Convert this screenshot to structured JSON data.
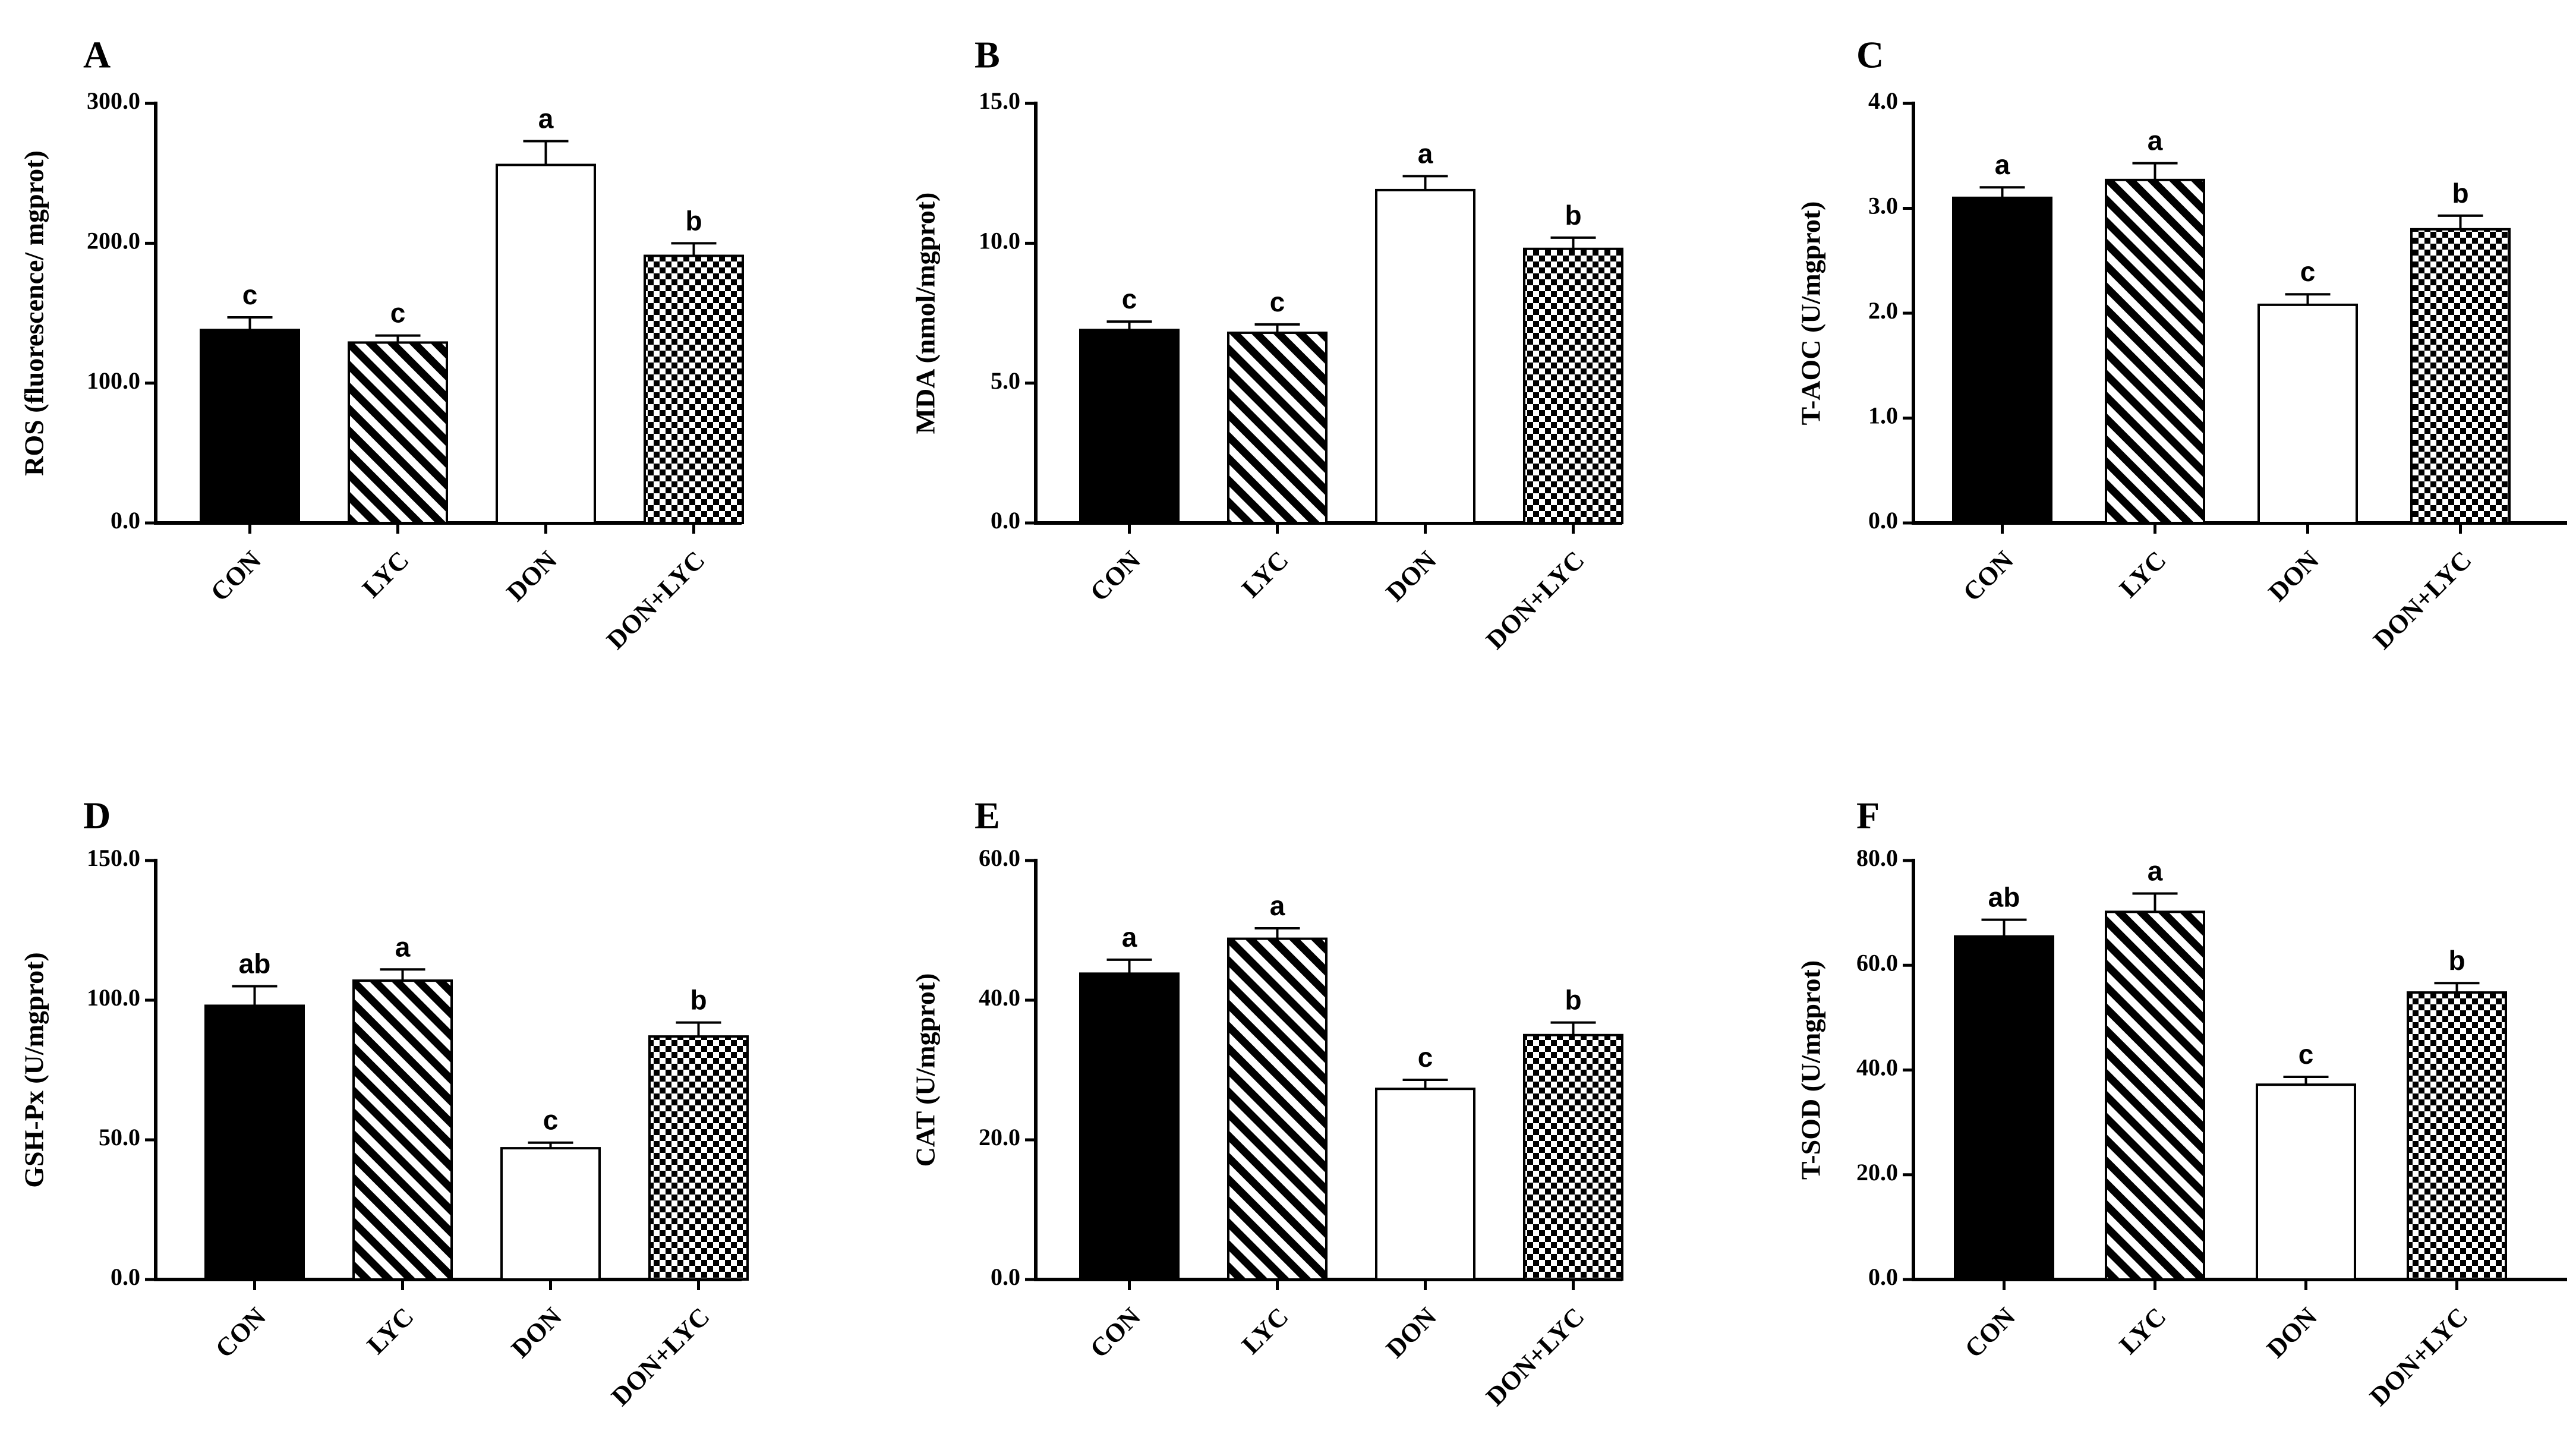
{
  "chart_data": [
    {
      "panel": "A",
      "type": "bar",
      "ylabel": "ROS (fluorescence/ mgprot)",
      "ylim": [
        0,
        300
      ],
      "ytick_labels": [
        "0.0",
        "100.0",
        "200.0",
        "300.0"
      ],
      "categories": [
        "CON",
        "LYC",
        "DON",
        "DON+LYC"
      ],
      "values": [
        138,
        129,
        256,
        191
      ],
      "errors": [
        9,
        5,
        17,
        9
      ],
      "significance": [
        "c",
        "c",
        "a",
        "b"
      ],
      "fills": [
        "solid",
        "stripes",
        "white",
        "checker"
      ]
    },
    {
      "panel": "B",
      "type": "bar",
      "ylabel": "MDA (nmol/mgprot)",
      "ylim": [
        0,
        15
      ],
      "ytick_labels": [
        "0.0",
        "5.0",
        "10.0",
        "15.0"
      ],
      "categories": [
        "CON",
        "LYC",
        "DON",
        "DON+LYC"
      ],
      "values": [
        6.9,
        6.8,
        11.9,
        9.8
      ],
      "errors": [
        0.3,
        0.3,
        0.5,
        0.4
      ],
      "significance": [
        "c",
        "c",
        "a",
        "b"
      ],
      "fills": [
        "solid",
        "stripes",
        "white",
        "checker"
      ]
    },
    {
      "panel": "C",
      "type": "bar",
      "ylabel": "T-AOC (U/mgprot)",
      "ylim": [
        0,
        4
      ],
      "ytick_labels": [
        "0.0",
        "1.0",
        "2.0",
        "3.0",
        "4.0"
      ],
      "categories": [
        "CON",
        "LYC",
        "DON",
        "DON+LYC"
      ],
      "values": [
        3.1,
        3.27,
        2.08,
        2.8
      ],
      "errors": [
        0.1,
        0.16,
        0.1,
        0.13
      ],
      "significance": [
        "a",
        "a",
        "c",
        "b"
      ],
      "fills": [
        "solid",
        "stripes",
        "white",
        "checker"
      ]
    },
    {
      "panel": "D",
      "type": "bar",
      "ylabel": "GSH-Px (U/mgprot)",
      "ylim": [
        0,
        150
      ],
      "ytick_labels": [
        "0.0",
        "50.0",
        "100.0",
        "150.0"
      ],
      "categories": [
        "CON",
        "LYC",
        "DON",
        "DON+LYC"
      ],
      "values": [
        98,
        107,
        47,
        87
      ],
      "errors": [
        7,
        4,
        2,
        5
      ],
      "significance": [
        "ab",
        "a",
        "c",
        "b"
      ],
      "fills": [
        "solid",
        "stripes",
        "white",
        "checker"
      ]
    },
    {
      "panel": "E",
      "type": "bar",
      "ylabel": "CAT (U/mgprot)",
      "ylim": [
        0,
        60
      ],
      "ytick_labels": [
        "0.0",
        "20.0",
        "40.0",
        "60.0"
      ],
      "categories": [
        "CON",
        "LYC",
        "DON",
        "DON+LYC"
      ],
      "values": [
        43.8,
        48.8,
        27.3,
        35
      ],
      "errors": [
        2,
        1.5,
        1.3,
        1.8
      ],
      "significance": [
        "a",
        "a",
        "c",
        "b"
      ],
      "fills": [
        "solid",
        "stripes",
        "white",
        "checker"
      ]
    },
    {
      "panel": "F",
      "type": "bar",
      "ylabel": "T-SOD (U/mgprot)",
      "ylim": [
        0,
        80
      ],
      "ytick_labels": [
        "0.0",
        "20.0",
        "40.0",
        "60.0",
        "80.0"
      ],
      "categories": [
        "CON",
        "LYC",
        "DON",
        "DON+LYC"
      ],
      "values": [
        65.5,
        70.2,
        37.2,
        54.8
      ],
      "errors": [
        3.2,
        3.5,
        1.5,
        1.8
      ],
      "significance": [
        "ab",
        "a",
        "c",
        "b"
      ],
      "fills": [
        "solid",
        "stripes",
        "white",
        "checker"
      ]
    }
  ]
}
